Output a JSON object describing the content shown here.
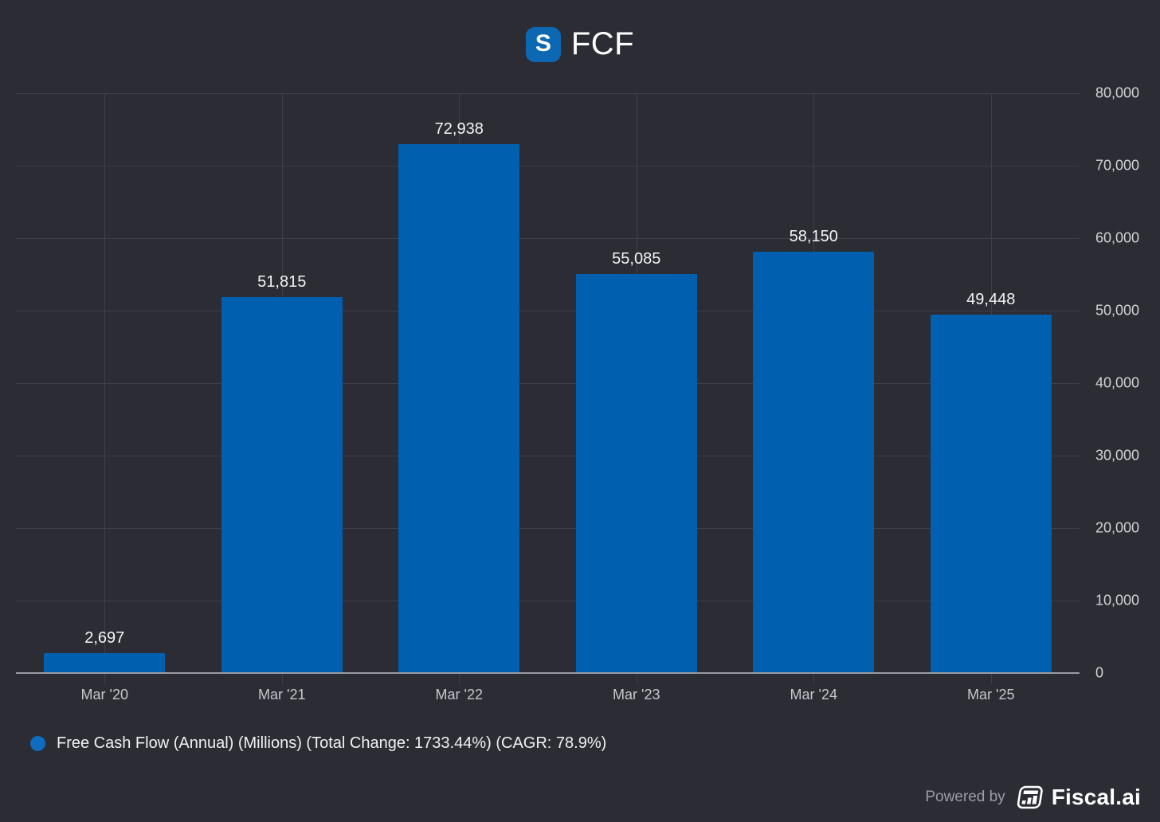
{
  "header": {
    "logo_letter": "S",
    "title": "FCF"
  },
  "chart_data": {
    "type": "bar",
    "title": "FCF",
    "categories": [
      "Mar '20",
      "Mar '21",
      "Mar '22",
      "Mar '23",
      "Mar '24",
      "Mar '25"
    ],
    "values": [
      2697,
      51815,
      72938,
      55085,
      58150,
      49448
    ],
    "value_labels": [
      "2,697",
      "51,815",
      "72,938",
      "55,085",
      "58,150",
      "49,448"
    ],
    "ylim": [
      0,
      80000
    ],
    "y_ticks": [
      0,
      10000,
      20000,
      30000,
      40000,
      50000,
      60000,
      70000,
      80000
    ],
    "y_tick_labels": [
      "0",
      "10,000",
      "20,000",
      "30,000",
      "40,000",
      "50,000",
      "60,000",
      "70,000",
      "80,000"
    ],
    "y_axis_side": "right",
    "grid": true,
    "legend": "Free Cash Flow (Annual) (Millions) (Total Change: 1733.44%) (CAGR: 78.9%)",
    "legend_position": "bottom-left",
    "bar_color": "#015fb0"
  },
  "legend": {
    "dot_color": "#0f6cc0"
  },
  "footer": {
    "powered_by": "Powered by",
    "brand": "Fiscal.ai"
  },
  "colors": {
    "background": "#2b2c34",
    "gridline": "#3e4049",
    "axis_line": "#9a9ca4",
    "logo_badge": "#0d68b3",
    "title_text": "#ffffff",
    "bar_label_text": "#f4f4f6",
    "tick_label_text": "#d2d3d8"
  }
}
